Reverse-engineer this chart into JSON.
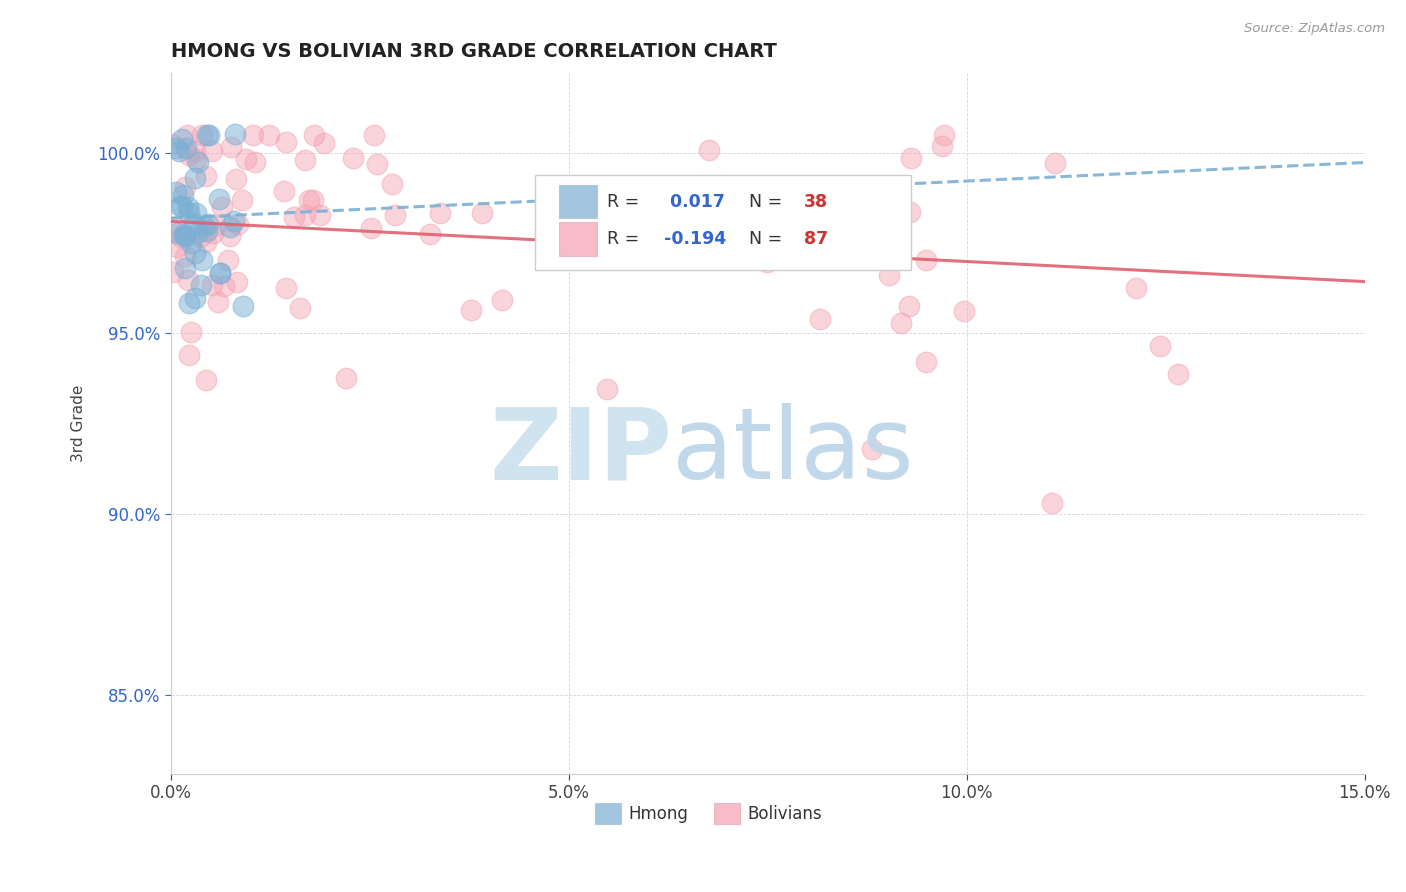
{
  "title": "HMONG VS BOLIVIAN 3RD GRADE CORRELATION CHART",
  "source_text": "Source: ZipAtlas.com",
  "ylabel": "3rd Grade",
  "xlim": [
    0.0,
    0.15
  ],
  "ylim": [
    0.828,
    1.022
  ],
  "xticks": [
    0.0,
    0.05,
    0.1,
    0.15
  ],
  "xticklabels": [
    "0.0%",
    "5.0%",
    "10.0%",
    "15.0%"
  ],
  "yticks": [
    0.85,
    0.9,
    0.95,
    1.0
  ],
  "yticklabels": [
    "85.0%",
    "90.0%",
    "95.0%",
    "100.0%"
  ],
  "hmong_color": "#7bafd4",
  "bolivian_color": "#f4a0b0",
  "hmong_R": 0.017,
  "hmong_N": 38,
  "bolivian_R": -0.194,
  "bolivian_N": 87,
  "background_color": "#ffffff",
  "grid_color": "#cccccc",
  "legend_text_color": "#3366cc",
  "legend_n_color": "#cc3333",
  "watermark_zip_color": "#d0e4f0",
  "watermark_atlas_color": "#c0d8ea"
}
